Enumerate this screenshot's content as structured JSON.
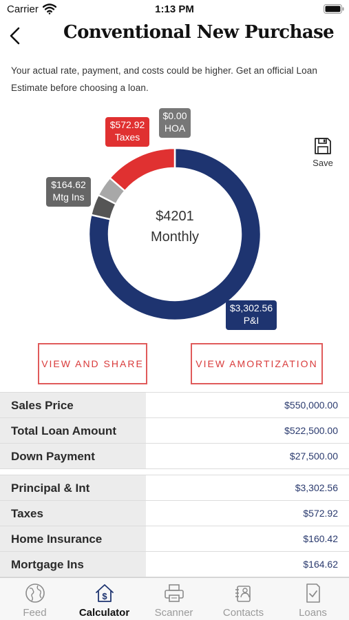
{
  "status": {
    "carrier": "Carrier",
    "time": "1:13 PM"
  },
  "nav": {
    "title": "Conventional New Purchase"
  },
  "disclaimer": "Your actual rate, payment, and costs could be higher. Get an official Loan Estimate before choosing a loan.",
  "chart_data": {
    "type": "pie",
    "center_amount": "$4201",
    "center_label": "Monthly",
    "slices": [
      {
        "name": "P&I",
        "display": "$3,302.56",
        "value": 3302.56,
        "color": "#1e3470"
      },
      {
        "name": "Mtg Ins",
        "display": "$164.62",
        "value": 164.62,
        "color": "#555555"
      },
      {
        "name": "Home Insurance",
        "value": 160.42,
        "color": "#a8a8a8"
      },
      {
        "name": "Taxes",
        "display": "$572.92",
        "value": 572.92,
        "color": "#e03131"
      },
      {
        "name": "HOA",
        "display": "$0.00",
        "value": 0.0,
        "color": "#777777"
      }
    ]
  },
  "tags": {
    "taxes_value": "$572.92",
    "taxes_label": "Taxes",
    "hoa_value": "$0.00",
    "hoa_label": "HOA",
    "mtg_value": "$164.62",
    "mtg_label": "Mtg Ins",
    "pi_value": "$3,302.56",
    "pi_label": "P&I"
  },
  "save_label": "Save",
  "buttons": {
    "view_share": "VIEW AND SHARE",
    "view_amortization": "VIEW AMORTIZATION"
  },
  "loan_rows": [
    {
      "label": "Sales Price",
      "value": "$550,000.00"
    },
    {
      "label": "Total Loan Amount",
      "value": "$522,500.00"
    },
    {
      "label": "Down Payment",
      "value": "$27,500.00"
    }
  ],
  "payment_rows": [
    {
      "label": "Principal & Int",
      "value": "$3,302.56"
    },
    {
      "label": "Taxes",
      "value": "$572.92"
    },
    {
      "label": "Home Insurance",
      "value": "$160.42"
    },
    {
      "label": "Mortgage Ins",
      "value": "$164.62"
    }
  ],
  "tabs": [
    {
      "label": "Feed",
      "icon": "globe-icon"
    },
    {
      "label": "Calculator",
      "icon": "calculator-house-icon"
    },
    {
      "label": "Scanner",
      "icon": "printer-icon"
    },
    {
      "label": "Contacts",
      "icon": "contacts-icon"
    },
    {
      "label": "Loans",
      "icon": "document-check-icon"
    }
  ]
}
